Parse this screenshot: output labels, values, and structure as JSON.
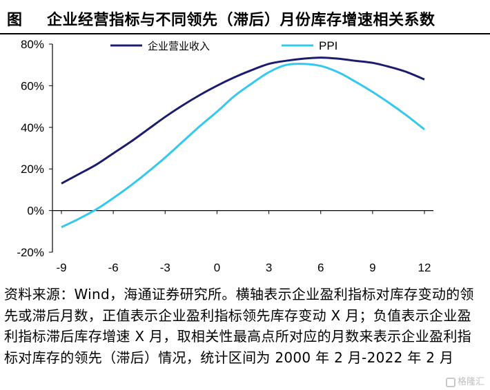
{
  "figure": {
    "label": "图",
    "title": "企业经营指标与不同领先（滞后）月份库存增速相关系数"
  },
  "chart_data": {
    "type": "line",
    "title": "企业经营指标与不同领先（滞后）月份库存增速相关系数",
    "xlabel": "",
    "ylabel": "",
    "x": [
      -9,
      -8,
      -7,
      -6,
      -5,
      -4,
      -3,
      -2,
      -1,
      0,
      1,
      2,
      3,
      4,
      5,
      6,
      7,
      8,
      9,
      10,
      11,
      12
    ],
    "x_ticks": [
      "-9",
      "-6",
      "-3",
      "0",
      "3",
      "6",
      "9",
      "12"
    ],
    "y_ticks": [
      "80%",
      "60%",
      "40%",
      "20%",
      "0%",
      "-20%"
    ],
    "xlim": [
      -9,
      12
    ],
    "ylim": [
      -20,
      80
    ],
    "y_unit": "%",
    "grid": false,
    "legend_position": "top",
    "series": [
      {
        "name": "企业营业收入",
        "color": "#1c1c6e",
        "values": [
          13,
          17.5,
          22,
          27.5,
          33,
          39,
          45,
          50.5,
          55.5,
          60,
          64,
          67.5,
          70.5,
          72,
          73,
          73.5,
          73,
          72,
          71,
          69,
          66.5,
          63
        ]
      },
      {
        "name": "PPI",
        "color": "#33c8ee",
        "values": [
          -8,
          -4,
          0.5,
          6,
          12,
          18.5,
          25.5,
          33,
          40.5,
          47.5,
          55,
          61,
          66.5,
          70,
          70.5,
          69.5,
          66.5,
          62,
          57,
          51.5,
          45.5,
          39
        ]
      }
    ]
  },
  "source_note": "资料来源：Wind，海通证券研究所。横轴表示企业盈利指标对库存变动的领先或滞后月数，正值表示企业盈利指标领先库存变动 X 月；负值表示企业盈利指标滞后库存增速 X 月，取相关性最高点所对应的月数来表示企业盈利指标对库存的领先（滞后）情况，统计区间为 2000 年 2 月-2022 年 2 月",
  "watermark": "格隆汇"
}
